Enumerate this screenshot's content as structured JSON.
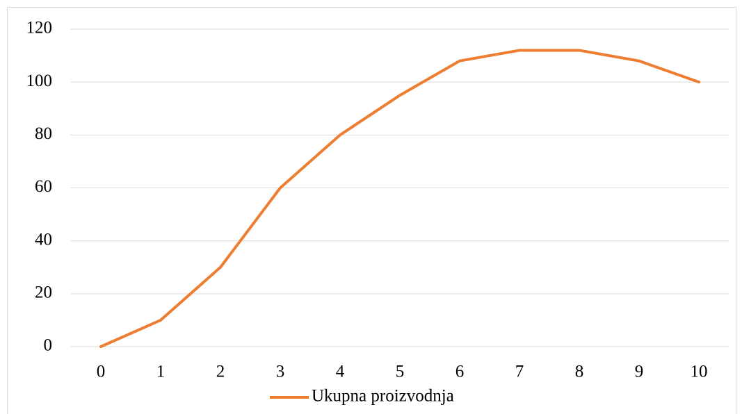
{
  "chart_data": {
    "type": "line",
    "categories": [
      "0",
      "1",
      "2",
      "3",
      "4",
      "5",
      "6",
      "7",
      "8",
      "9",
      "10"
    ],
    "series": [
      {
        "name": "Ukupna proizvodnja",
        "color": "#ed7d31",
        "values": [
          0,
          10,
          30,
          60,
          80,
          95,
          108,
          112,
          112,
          108,
          100
        ]
      }
    ],
    "ylim": [
      0,
      120
    ],
    "yticks": [
      0,
      20,
      40,
      60,
      80,
      100,
      120
    ],
    "grid": true,
    "legend": "bottom"
  }
}
